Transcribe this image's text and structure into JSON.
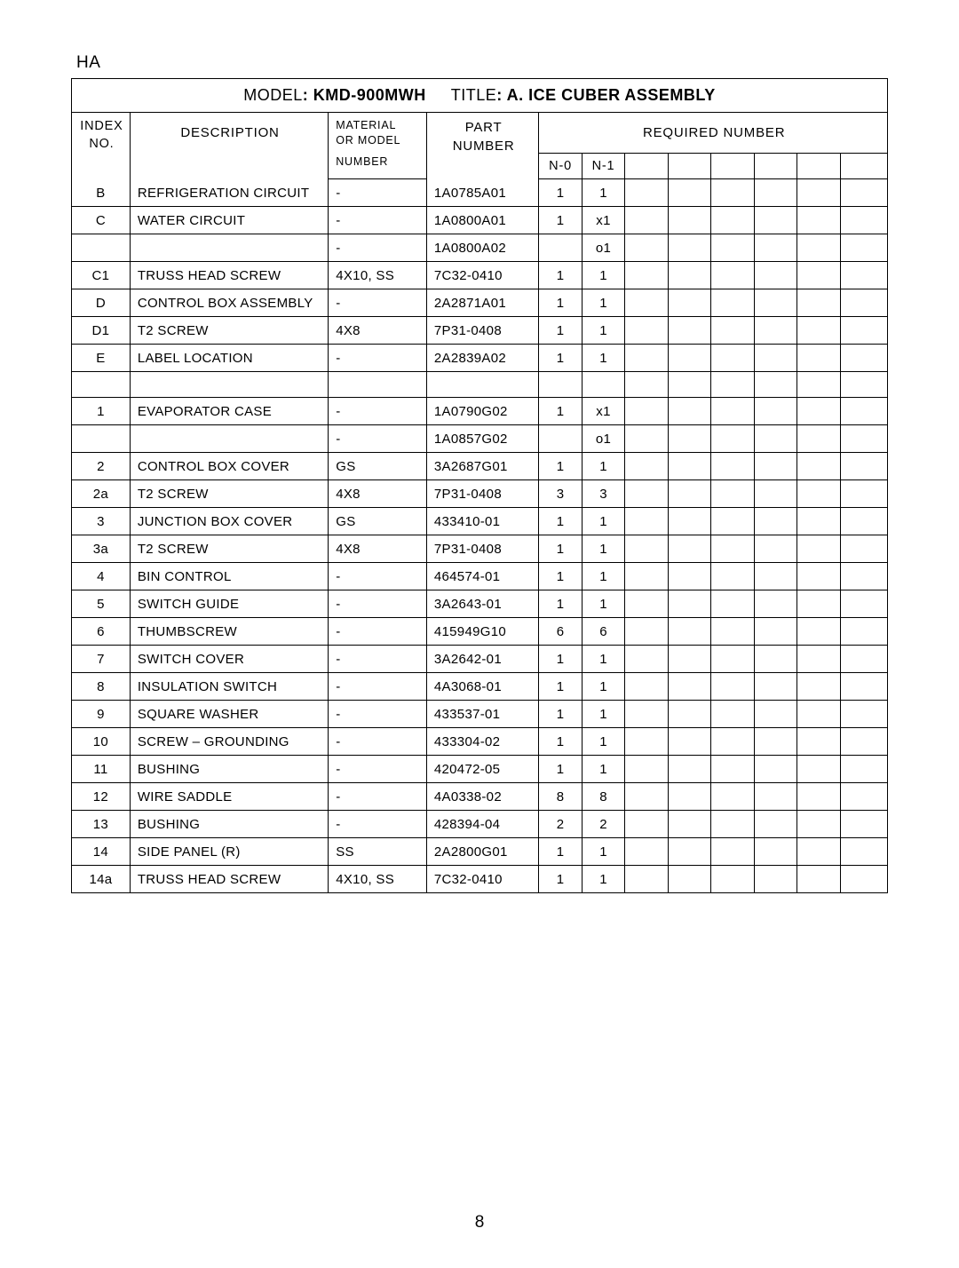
{
  "page": {
    "prefix": "HA",
    "page_number": "8"
  },
  "header": {
    "model_label": "MODEL",
    "model_value": ": KMD-900MWH",
    "title_label": "TITLE",
    "title_value": ": A. ICE CUBER ASSEMBLY"
  },
  "columns": {
    "index": "INDEX\nNO.",
    "description": "DESCRIPTION",
    "material_top": "MATERIAL\nOR MODEL",
    "material_bot": "NUMBER",
    "part": "PART\nNUMBER",
    "required": "REQUIRED NUMBER",
    "sub": [
      "N-0",
      "N-1",
      "",
      "",
      "",
      "",
      "",
      ""
    ]
  },
  "rows": [
    {
      "idx": "B",
      "desc": "REFRIGERATION CIRCUIT",
      "mat": "-",
      "part": "1A0785A01",
      "r0": "1",
      "r1": "1"
    },
    {
      "idx": "C",
      "desc": "WATER CIRCUIT",
      "mat": "-",
      "part": "1A0800A01",
      "r0": "1",
      "r1": "x1"
    },
    {
      "idx": "",
      "desc": "",
      "mat": "-",
      "part": "1A0800A02",
      "r0": "",
      "r1": "o1"
    },
    {
      "idx": "C1",
      "desc": "TRUSS HEAD SCREW",
      "mat": "4X10, SS",
      "part": "7C32-0410",
      "r0": "1",
      "r1": "1"
    },
    {
      "idx": "D",
      "desc": "CONTROL BOX ASSEMBLY",
      "mat": "-",
      "part": "2A2871A01",
      "r0": "1",
      "r1": "1"
    },
    {
      "idx": "D1",
      "desc": "T2 SCREW",
      "mat": "4X8",
      "part": "7P31-0408",
      "r0": "1",
      "r1": "1"
    },
    {
      "idx": "E",
      "desc": "LABEL LOCATION",
      "mat": "-",
      "part": "2A2839A02",
      "r0": "1",
      "r1": "1"
    },
    {
      "spacer": true
    },
    {
      "idx": "1",
      "desc": "EVAPORATOR CASE",
      "mat": "-",
      "part": "1A0790G02",
      "r0": "1",
      "r1": "x1"
    },
    {
      "idx": "",
      "desc": "",
      "mat": "-",
      "part": "1A0857G02",
      "r0": "",
      "r1": "o1"
    },
    {
      "idx": "2",
      "desc": "CONTROL BOX COVER",
      "mat": "GS",
      "part": "3A2687G01",
      "r0": "1",
      "r1": "1"
    },
    {
      "idx": "2a",
      "desc": "T2 SCREW",
      "mat": "4X8",
      "part": "7P31-0408",
      "r0": "3",
      "r1": "3"
    },
    {
      "idx": "3",
      "desc": "JUNCTION BOX COVER",
      "mat": "GS",
      "part": "433410-01",
      "r0": "1",
      "r1": "1"
    },
    {
      "idx": "3a",
      "desc": "T2 SCREW",
      "mat": "4X8",
      "part": "7P31-0408",
      "r0": "1",
      "r1": "1"
    },
    {
      "idx": "4",
      "desc": "BIN CONTROL",
      "mat": "-",
      "part": "464574-01",
      "r0": "1",
      "r1": "1"
    },
    {
      "idx": "5",
      "desc": "SWITCH GUIDE",
      "mat": "-",
      "part": "3A2643-01",
      "r0": "1",
      "r1": "1"
    },
    {
      "idx": "6",
      "desc": "THUMBSCREW",
      "mat": "-",
      "part": "415949G10",
      "r0": "6",
      "r1": "6"
    },
    {
      "idx": "7",
      "desc": "SWITCH COVER",
      "mat": "-",
      "part": "3A2642-01",
      "r0": "1",
      "r1": "1"
    },
    {
      "idx": "8",
      "desc": "INSULATION SWITCH",
      "mat": "-",
      "part": "4A3068-01",
      "r0": "1",
      "r1": "1"
    },
    {
      "idx": "9",
      "desc": "SQUARE WASHER",
      "mat": "-",
      "part": "433537-01",
      "r0": "1",
      "r1": "1"
    },
    {
      "idx": "10",
      "desc": "SCREW – GROUNDING",
      "mat": "-",
      "part": "433304-02",
      "r0": "1",
      "r1": "1"
    },
    {
      "idx": "11",
      "desc": "BUSHING",
      "mat": "-",
      "part": "420472-05",
      "r0": "1",
      "r1": "1"
    },
    {
      "idx": "12",
      "desc": "WIRE SADDLE",
      "mat": "-",
      "part": "4A0338-02",
      "r0": "8",
      "r1": "8"
    },
    {
      "idx": "13",
      "desc": "BUSHING",
      "mat": "-",
      "part": "428394-04",
      "r0": "2",
      "r1": "2"
    },
    {
      "idx": "14",
      "desc": "SIDE PANEL (R)",
      "mat": "SS",
      "part": "2A2800G01",
      "r0": "1",
      "r1": "1"
    },
    {
      "idx": "14a",
      "desc": "TRUSS HEAD SCREW",
      "mat": "4X10, SS",
      "part": "7C32-0410",
      "r0": "1",
      "r1": "1"
    }
  ]
}
